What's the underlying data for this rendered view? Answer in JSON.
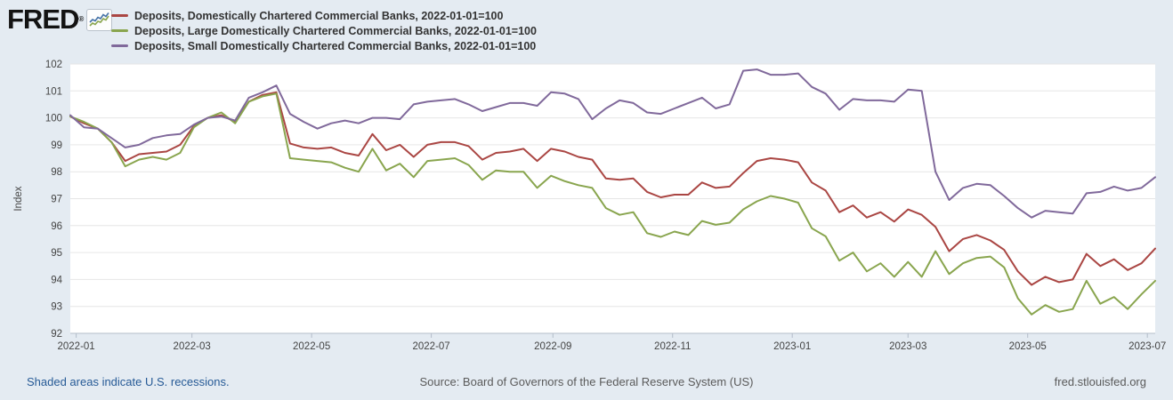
{
  "header": {
    "logo_text": "FRED",
    "logo_reg": "®"
  },
  "footer": {
    "recession_note": "Shaded areas indicate U.S. recessions.",
    "source": "Source: Board of Governors of the Federal Reserve System (US)",
    "site": "fred.stlouisfed.org"
  },
  "colors": {
    "background": "#e4ebf2",
    "plot_background": "#ffffff",
    "gridline": "#e6e6e6",
    "axis_line": "#b3bcc9",
    "axis_text": "#444444",
    "legend_text": "#333333",
    "link_blue": "#265a96",
    "logo_icon_blue": "#4572a7",
    "logo_icon_green": "#89a54e"
  },
  "chart_data": {
    "type": "line",
    "title": "",
    "xlabel": "",
    "ylabel": "Index",
    "ylim": [
      92,
      102
    ],
    "yticks": [
      92,
      93,
      94,
      95,
      96,
      97,
      98,
      99,
      100,
      101,
      102
    ],
    "grid": "horizontal",
    "legend_position": "top-left",
    "frequency": "weekly",
    "axis_span_days": 553,
    "xticks": [
      {
        "label": "2022-01",
        "day": 3
      },
      {
        "label": "2022-03",
        "day": 62
      },
      {
        "label": "2022-05",
        "day": 123
      },
      {
        "label": "2022-07",
        "day": 184
      },
      {
        "label": "2022-09",
        "day": 246
      },
      {
        "label": "2022-11",
        "day": 307
      },
      {
        "label": "2023-01",
        "day": 368
      },
      {
        "label": "2023-03",
        "day": 427
      },
      {
        "label": "2023-05",
        "day": 488
      },
      {
        "label": "2023-07",
        "day": 549
      }
    ],
    "dates": [
      "2021-12-29",
      "2022-01-05",
      "2022-01-12",
      "2022-01-19",
      "2022-01-26",
      "2022-02-02",
      "2022-02-09",
      "2022-02-16",
      "2022-02-23",
      "2022-03-02",
      "2022-03-09",
      "2022-03-16",
      "2022-03-23",
      "2022-03-30",
      "2022-04-06",
      "2022-04-13",
      "2022-04-20",
      "2022-04-27",
      "2022-05-04",
      "2022-05-11",
      "2022-05-18",
      "2022-05-25",
      "2022-06-01",
      "2022-06-08",
      "2022-06-15",
      "2022-06-22",
      "2022-06-29",
      "2022-07-06",
      "2022-07-13",
      "2022-07-20",
      "2022-07-27",
      "2022-08-03",
      "2022-08-10",
      "2022-08-17",
      "2022-08-24",
      "2022-08-31",
      "2022-09-07",
      "2022-09-14",
      "2022-09-21",
      "2022-09-28",
      "2022-10-05",
      "2022-10-12",
      "2022-10-19",
      "2022-10-26",
      "2022-11-02",
      "2022-11-09",
      "2022-11-16",
      "2022-11-23",
      "2022-11-30",
      "2022-12-07",
      "2022-12-14",
      "2022-12-21",
      "2022-12-28",
      "2023-01-04",
      "2023-01-11",
      "2023-01-18",
      "2023-01-25",
      "2023-02-01",
      "2023-02-08",
      "2023-02-15",
      "2023-02-22",
      "2023-03-01",
      "2023-03-08",
      "2023-03-15",
      "2023-03-22",
      "2023-03-29",
      "2023-04-05",
      "2023-04-12",
      "2023-04-19",
      "2023-04-26",
      "2023-05-03",
      "2023-05-10",
      "2023-05-17",
      "2023-05-24",
      "2023-05-31",
      "2023-06-07",
      "2023-06-14",
      "2023-06-21",
      "2023-06-28",
      "2023-07-05"
    ],
    "series": [
      {
        "id": "deposits-all-domestic",
        "name": "Deposits, Domestically Chartered Commercial Banks, 2022-01-01=100",
        "color": "#aa4643",
        "values": [
          100.05,
          99.8,
          99.6,
          99.1,
          98.4,
          98.65,
          98.7,
          98.75,
          99.0,
          99.7,
          100.0,
          100.1,
          99.85,
          100.6,
          100.85,
          100.95,
          99.05,
          98.9,
          98.85,
          98.9,
          98.7,
          98.6,
          99.4,
          98.8,
          99.0,
          98.55,
          99.0,
          99.1,
          99.1,
          98.95,
          98.45,
          98.7,
          98.75,
          98.85,
          98.4,
          98.85,
          98.75,
          98.55,
          98.45,
          97.75,
          97.7,
          97.75,
          97.25,
          97.05,
          97.15,
          97.15,
          97.6,
          97.4,
          97.45,
          97.95,
          98.4,
          98.5,
          98.45,
          98.35,
          97.6,
          97.3,
          96.5,
          96.75,
          96.3,
          96.5,
          96.15,
          96.6,
          96.4,
          95.95,
          95.05,
          95.5,
          95.65,
          95.45,
          95.1,
          94.3,
          93.8,
          94.1,
          93.9,
          94.0,
          94.95,
          94.5,
          94.75,
          94.35,
          94.6,
          95.15
        ]
      },
      {
        "id": "deposits-large-domestic",
        "name": "Deposits, Large Domestically Chartered Commercial Banks, 2022-01-01=100",
        "color": "#89a54e",
        "values": [
          100.05,
          99.85,
          99.6,
          99.1,
          98.2,
          98.45,
          98.55,
          98.45,
          98.7,
          99.65,
          100.0,
          100.2,
          99.8,
          100.6,
          100.8,
          100.9,
          98.5,
          98.45,
          98.4,
          98.35,
          98.15,
          98.0,
          98.85,
          98.05,
          98.3,
          97.8,
          98.4,
          98.45,
          98.5,
          98.25,
          97.7,
          98.05,
          98.0,
          98.0,
          97.4,
          97.85,
          97.65,
          97.5,
          97.4,
          96.65,
          96.4,
          96.5,
          95.72,
          95.58,
          95.78,
          95.65,
          96.17,
          96.03,
          96.11,
          96.6,
          96.9,
          97.1,
          97.0,
          96.85,
          95.9,
          95.6,
          94.7,
          95.0,
          94.3,
          94.6,
          94.1,
          94.65,
          94.1,
          95.05,
          94.2,
          94.6,
          94.8,
          94.85,
          94.45,
          93.3,
          92.7,
          93.05,
          92.8,
          92.9,
          93.95,
          93.1,
          93.35,
          92.9,
          93.45,
          93.95
        ]
      },
      {
        "id": "deposits-small-domestic",
        "name": "Deposits, Small Domestically Chartered Commercial Banks, 2022-01-01=100",
        "color": "#80699b",
        "values": [
          100.1,
          99.65,
          99.6,
          99.25,
          98.9,
          99.0,
          99.25,
          99.35,
          99.4,
          99.75,
          100.0,
          100.05,
          99.9,
          100.75,
          100.95,
          101.2,
          100.15,
          99.85,
          99.6,
          99.8,
          99.9,
          99.8,
          100.0,
          100.0,
          99.95,
          100.5,
          100.6,
          100.65,
          100.7,
          100.5,
          100.25,
          100.4,
          100.55,
          100.55,
          100.45,
          100.95,
          100.9,
          100.7,
          99.95,
          100.35,
          100.65,
          100.55,
          100.2,
          100.15,
          100.35,
          100.55,
          100.75,
          100.35,
          100.5,
          101.75,
          101.8,
          101.6,
          101.6,
          101.65,
          101.15,
          100.9,
          100.3,
          100.7,
          100.65,
          100.65,
          100.6,
          101.05,
          101.0,
          98.0,
          96.95,
          97.4,
          97.55,
          97.5,
          97.1,
          96.65,
          96.3,
          96.55,
          96.5,
          96.45,
          97.2,
          97.25,
          97.45,
          97.3,
          97.4,
          97.8
        ]
      }
    ]
  }
}
